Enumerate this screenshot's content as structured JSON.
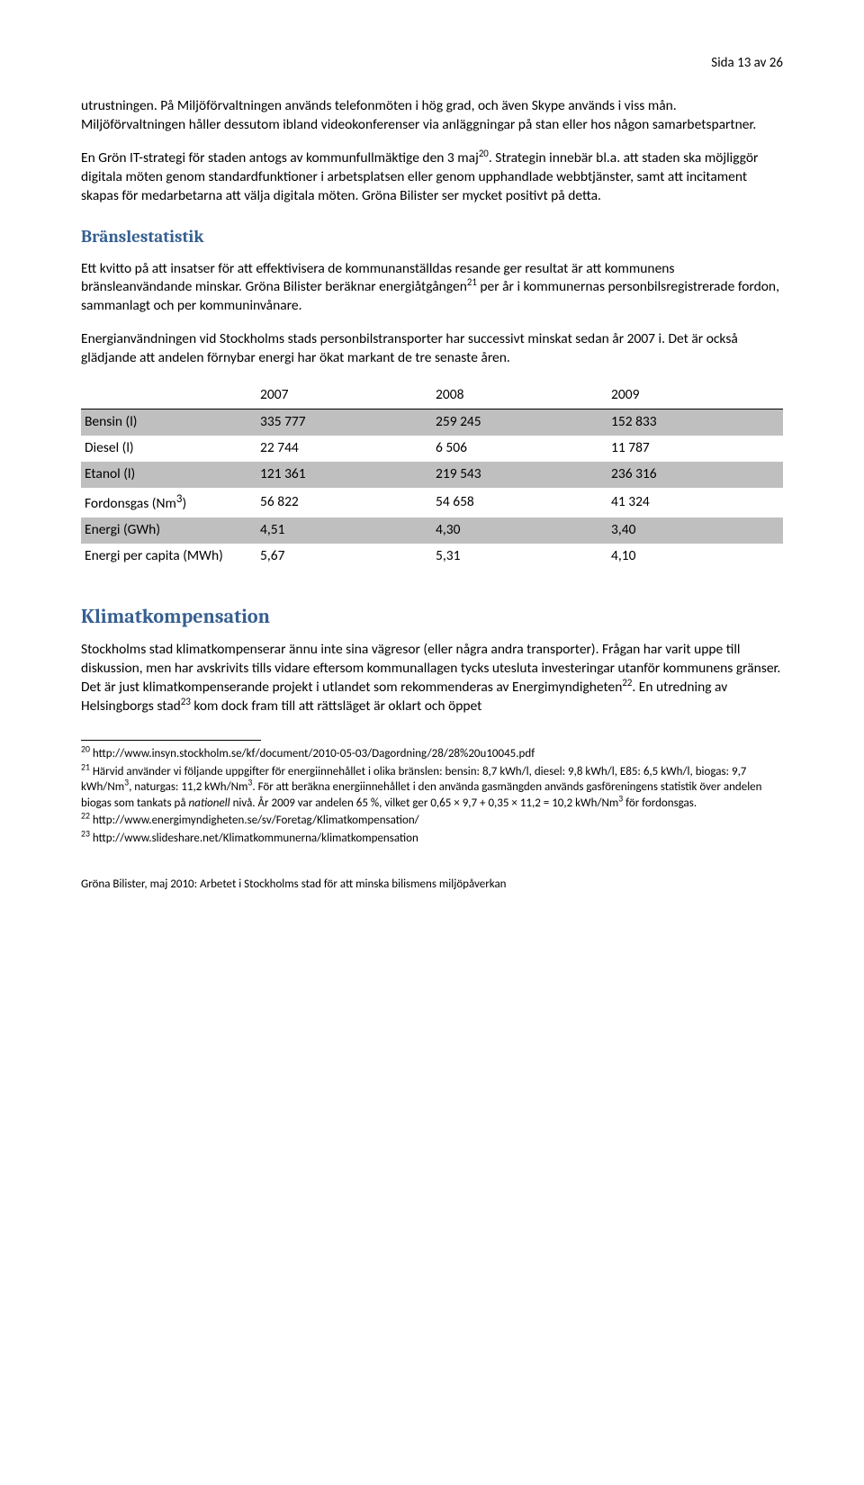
{
  "header": {
    "text": "Sida 13 av 26"
  },
  "para_intro": "utrustningen. På Miljöförvaltningen används telefonmöten i hög grad, och även Skype används i viss mån. Miljöförvaltningen håller dessutom ibland videokonferenser via anläggningar på stan eller hos någon samarbetspartner.",
  "para_strategy_a": "En Grön IT-strategi för staden antogs av kommunfullmäktige den 3 maj",
  "para_strategy_sup": "20",
  "para_strategy_b": ". Strategin innebär bl.a. att staden ska möjliggör digitala möten genom standardfunktioner i arbetsplatsen eller genom upphandlade webbtjänster, samt att incitament skapas för medarbetarna att välja digitala möten. Gröna Bilister ser mycket positivt på detta.",
  "sec_fuel": "Bränslestatistik",
  "para_fuel_a": "Ett kvitto på att insatser för att effektivisera de kommunanställdas resande ger resultat är att kommunens bränsleanvändande minskar. Gröna Bilister beräknar energiåtgången",
  "para_fuel_sup": "21",
  "para_fuel_b": " per år i kommunernas personbilsregistrerade fordon, sammanlagt och per kommuninvånare.",
  "para_fuel_2": "Energianvändningen vid Stockholms stads personbilstransporter har successivt minskat sedan år 2007 i. Det är också glädjande att andelen förnybar energi har ökat markant de tre senaste åren.",
  "table": {
    "cols": [
      "2007",
      "2008",
      "2009"
    ],
    "rows": [
      {
        "label": "Bensin (l)",
        "shaded": true,
        "cells": [
          "335 777",
          "259 245",
          "152 833"
        ]
      },
      {
        "label": "Diesel (l)",
        "shaded": false,
        "cells": [
          "22 744",
          "6 506",
          "11 787"
        ]
      },
      {
        "label": "Etanol (l)",
        "shaded": true,
        "cells": [
          "121 361",
          "219 543",
          "236 316"
        ]
      },
      {
        "label_html": "Fordonsgas (Nm<sup>3</sup>)",
        "label": "Fordonsgas (Nm3)",
        "shaded": false,
        "cells": [
          "56 822",
          "54 658",
          "41 324"
        ]
      },
      {
        "label": "Energi (GWh)",
        "shaded": true,
        "cells": [
          "4,51",
          "4,30",
          "3,40"
        ]
      },
      {
        "label": "Energi per capita (MWh)",
        "shaded": false,
        "cells": [
          "5,67",
          "5,31",
          "4,10"
        ]
      }
    ],
    "header_bg": "#ffffff",
    "shaded_bg": "#bfbfbf"
  },
  "sec_climate": "Klimatkompensation",
  "para_climate_a": "Stockholms stad klimatkompenserar ännu inte sina vägresor (eller några andra transporter). Frågan har varit uppe till diskussion, men har avskrivits tills vidare eftersom kommunallagen tycks utesluta investeringar utanför kommunens gränser. Det är just klimatkompenserande projekt i utlandet som rekommenderas av Energimyndigheten",
  "para_climate_sup1": "22",
  "para_climate_b": ". En utredning av Helsingborgs stad",
  "para_climate_sup2": "23",
  "para_climate_c": " kom dock fram till att rättsläget är oklart och öppet",
  "footnotes": {
    "f20": {
      "n": "20",
      "text": " http://www.insyn.stockholm.se/kf/document/2010-05-03/Dagordning/28/28%20u10045.pdf"
    },
    "f21": {
      "n": "21",
      "a": " Härvid använder vi följande uppgifter för energiinnehållet i olika bränslen: bensin: 8,7 kWh/l, diesel: 9,8 kWh/l, E85: 6,5 kWh/l, biogas: 9,7 kWh/Nm",
      "s1": "3",
      "b": ", naturgas: 11,2 kWh/Nm",
      "s2": "3",
      "c": ". För att beräkna energiinnehållet i den använda gasmängden används gasföreningens statistik över andelen biogas som tankats på ",
      "it": "nationell",
      "d": " nivå. År 2009 var andelen 65 %, vilket ger 0,65 × 9,7 + 0,35 × 11,2 = 10,2 kWh/Nm",
      "s3": "3",
      "e": " för fordonsgas."
    },
    "f22": {
      "n": "22",
      "text": " http://www.energimyndigheten.se/sv/Foretag/Klimatkompensation/"
    },
    "f23": {
      "n": "23",
      "text": " http://www.slideshare.net/Klimatkommunerna/klimatkompensation"
    }
  },
  "footer": "Gröna Bilister, maj 2010: Arbetet i Stockholms stad för att minska bilismens miljöpåverkan"
}
